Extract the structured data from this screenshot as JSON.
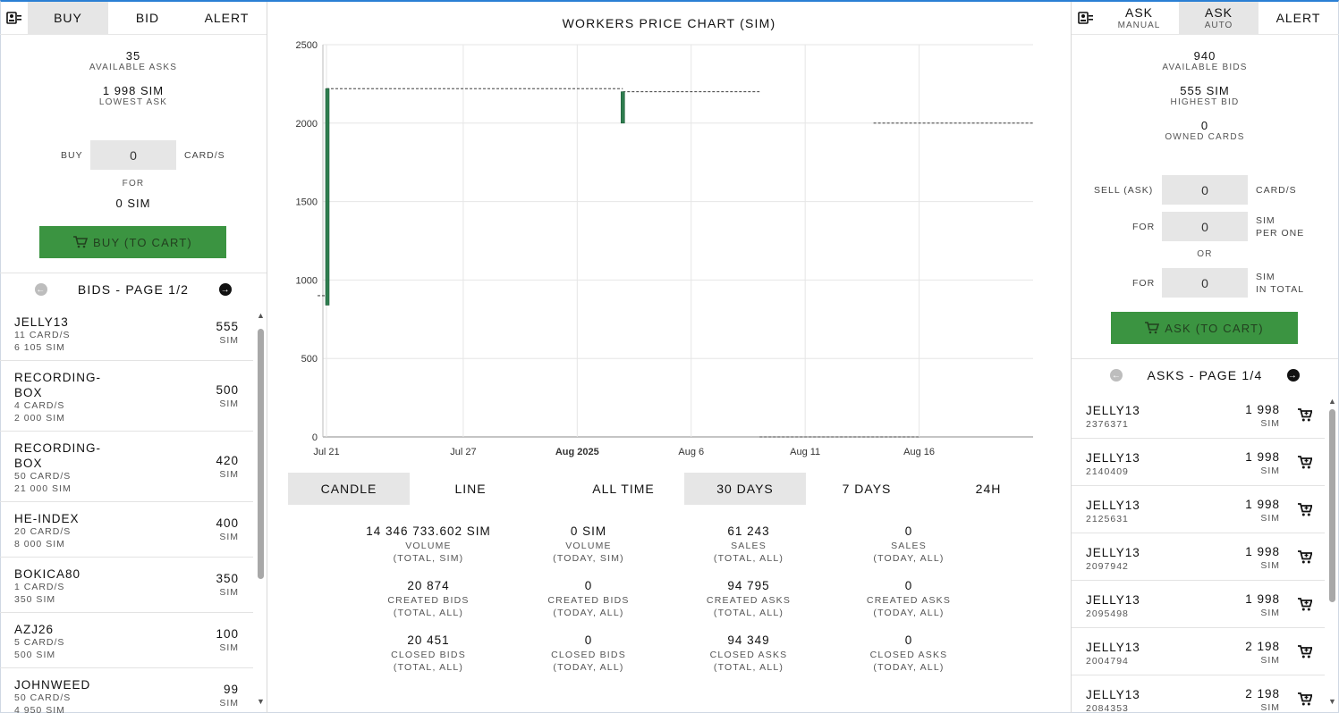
{
  "left": {
    "tabs": [
      {
        "label": "BUY",
        "active": true
      },
      {
        "label": "BID",
        "active": false
      },
      {
        "label": "ALERT",
        "active": false
      }
    ],
    "stats": [
      {
        "value": "35",
        "label": "AVAILABLE ASKS"
      },
      {
        "value": "1 998 SIM",
        "label": "LOWEST ASK"
      }
    ],
    "buy_label": "BUY",
    "buy_value": "0",
    "buy_unit": "CARD/S",
    "for_label": "FOR",
    "for_value": "0 SIM",
    "buy_button": "BUY (TO CART)",
    "pager_label": "BIDS - PAGE 1/2",
    "bids": [
      {
        "name": "JELLY13",
        "cards": "11 CARD/S",
        "total": "6 105 SIM",
        "price": "555",
        "unit": "SIM"
      },
      {
        "name": "RECORDING-\nBOX",
        "cards": "4 CARD/S",
        "total": "2 000 SIM",
        "price": "500",
        "unit": "SIM"
      },
      {
        "name": "RECORDING-\nBOX",
        "cards": "50 CARD/S",
        "total": "21 000 SIM",
        "price": "420",
        "unit": "SIM"
      },
      {
        "name": "HE-INDEX",
        "cards": "20 CARD/S",
        "total": "8 000 SIM",
        "price": "400",
        "unit": "SIM"
      },
      {
        "name": "BOKICA80",
        "cards": "1 CARD/S",
        "total": "350 SIM",
        "price": "350",
        "unit": "SIM"
      },
      {
        "name": "AZJ26",
        "cards": "5 CARD/S",
        "total": "500 SIM",
        "price": "100",
        "unit": "SIM"
      },
      {
        "name": "JOHNWEED",
        "cards": "50 CARD/S",
        "total": "4 950 SIM",
        "price": "99",
        "unit": "SIM"
      }
    ]
  },
  "chart": {
    "title": "WORKERS PRICE CHART (SIM)",
    "y_ticks": [
      "2500",
      "2000",
      "1500",
      "1000",
      "500",
      "0"
    ],
    "x_ticks": [
      "Jul 21",
      "Jul 27",
      "Aug 2025",
      "Aug 6",
      "Aug 11",
      "Aug 16"
    ],
    "chart_types": [
      {
        "label": "CANDLE",
        "active": true
      },
      {
        "label": "LINE",
        "active": false
      }
    ],
    "ranges": [
      {
        "label": "ALL TIME",
        "active": false
      },
      {
        "label": "30 DAYS",
        "active": true
      },
      {
        "label": "7 DAYS",
        "active": false
      },
      {
        "label": "24H",
        "active": false
      }
    ]
  },
  "chart_data": {
    "type": "candlestick",
    "title": "WORKERS PRICE CHART (SIM)",
    "ylim": [
      0,
      2500
    ],
    "x_range": [
      "2025-07-21",
      "2025-08-21"
    ],
    "candles": [
      {
        "date": "2025-07-21",
        "open": 840,
        "close": 2220,
        "high": 2220,
        "low": 840
      },
      {
        "date": "2025-08-03",
        "open": 2000,
        "close": 2200,
        "high": 2200,
        "low": 2000
      }
    ],
    "reference_lines": [
      {
        "from": "2025-07-21",
        "to": "2025-08-03",
        "value": 2220
      },
      {
        "from": "2025-08-03",
        "to": "2025-08-09",
        "value": 2200
      },
      {
        "from": "2025-08-14",
        "to": "2025-08-21",
        "value": 2000
      },
      {
        "from": "2025-08-09",
        "to": "2025-08-16",
        "value": 0
      },
      {
        "from": "2025-07-21",
        "to": "2025-07-21",
        "value": 900
      }
    ]
  },
  "metrics": [
    {
      "value": "14 346 733.602 SIM",
      "label1": "VOLUME",
      "label2": "(TOTAL, SIM)"
    },
    {
      "value": "0 SIM",
      "label1": "VOLUME",
      "label2": "(TODAY, SIM)"
    },
    {
      "value": "61 243",
      "label1": "SALES",
      "label2": "(TOTAL, ALL)"
    },
    {
      "value": "0",
      "label1": "SALES",
      "label2": "(TODAY, ALL)"
    },
    {
      "value": "20 874",
      "label1": "CREATED BIDS",
      "label2": "(TOTAL, ALL)"
    },
    {
      "value": "0",
      "label1": "CREATED BIDS",
      "label2": "(TODAY, ALL)"
    },
    {
      "value": "94 795",
      "label1": "CREATED ASKS",
      "label2": "(TOTAL, ALL)"
    },
    {
      "value": "0",
      "label1": "CREATED ASKS",
      "label2": "(TODAY, ALL)"
    },
    {
      "value": "20 451",
      "label1": "CLOSED BIDS",
      "label2": "(TOTAL, ALL)"
    },
    {
      "value": "0",
      "label1": "CLOSED BIDS",
      "label2": "(TODAY, ALL)"
    },
    {
      "value": "94 349",
      "label1": "CLOSED ASKS",
      "label2": "(TOTAL, ALL)"
    },
    {
      "value": "0",
      "label1": "CLOSED ASKS",
      "label2": "(TODAY, ALL)"
    }
  ],
  "right": {
    "tabs": [
      {
        "label": "ASK",
        "sub": "MANUAL",
        "active": false
      },
      {
        "label": "ASK",
        "sub": "AUTO",
        "active": true
      },
      {
        "label": "ALERT",
        "sub": "",
        "active": false
      }
    ],
    "stats": [
      {
        "value": "940",
        "label": "AVAILABLE BIDS"
      },
      {
        "value": "555 SIM",
        "label": "HIGHEST BID"
      },
      {
        "value": "0",
        "label": "OWNED CARDS"
      }
    ],
    "sell_label": "SELL (ASK)",
    "sell_value": "0",
    "sell_unit": "CARD/S",
    "for_label": "FOR",
    "for_value_1": "0",
    "for_unit_1a": "SIM",
    "for_unit_1b": "PER ONE",
    "or_label": "OR",
    "for_value_2": "0",
    "for_unit_2a": "SIM",
    "for_unit_2b": "IN TOTAL",
    "ask_button": "ASK (TO CART)",
    "pager_label": "ASKS - PAGE 1/4",
    "asks": [
      {
        "name": "JELLY13",
        "id": "2376371",
        "price": "1 998",
        "unit": "SIM"
      },
      {
        "name": "JELLY13",
        "id": "2140409",
        "price": "1 998",
        "unit": "SIM"
      },
      {
        "name": "JELLY13",
        "id": "2125631",
        "price": "1 998",
        "unit": "SIM"
      },
      {
        "name": "JELLY13",
        "id": "2097942",
        "price": "1 998",
        "unit": "SIM"
      },
      {
        "name": "JELLY13",
        "id": "2095498",
        "price": "1 998",
        "unit": "SIM"
      },
      {
        "name": "JELLY13",
        "id": "2004794",
        "price": "2 198",
        "unit": "SIM"
      },
      {
        "name": "JELLY13",
        "id": "2084353",
        "price": "2 198",
        "unit": "SIM"
      }
    ]
  },
  "colors": {
    "accent": "#3b9441",
    "candle": "#2e7d4f",
    "tab_active": "#e6e6e6"
  }
}
